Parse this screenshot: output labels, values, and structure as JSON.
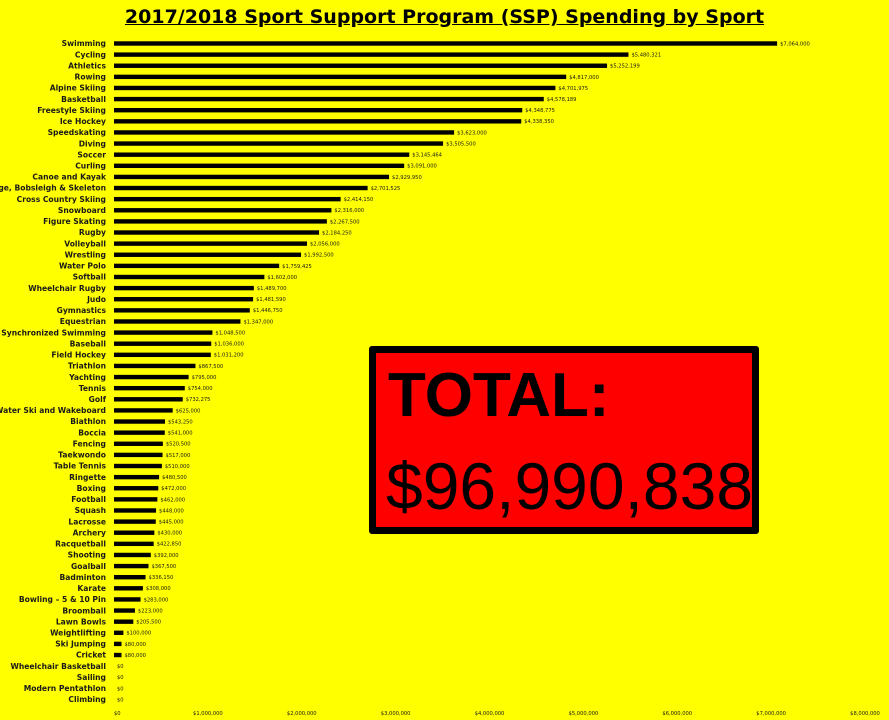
{
  "chart_data": {
    "type": "bar",
    "orientation": "horizontal",
    "title": "2017/2018 Sport Support Program (SSP) Spending by Sport",
    "xlim": [
      0,
      8000000
    ],
    "xticks": [
      0,
      1000000,
      2000000,
      3000000,
      4000000,
      5000000,
      6000000,
      7000000,
      8000000
    ],
    "xtick_labels": [
      "$0",
      "$1,000,000",
      "$2,000,000",
      "$3,000,000",
      "$4,000,000",
      "$5,000,000",
      "$6,000,000",
      "$7,000,000",
      "$8,000,000"
    ],
    "bar_color": "#000000",
    "background_color": "#ffff00",
    "grid": false,
    "categories": [
      "Swimming",
      "Cycling",
      "Athletics",
      "Rowing",
      "Alpine Skiing",
      "Basketball",
      "Freestyle Skiing",
      "Ice Hockey",
      "Speedskating",
      "Diving",
      "Soccer",
      "Curling",
      "Canoe and Kayak",
      "Luge, Bobsleigh & Skeleton",
      "Cross Country Skiing",
      "Snowboard",
      "Figure Skating",
      "Rugby",
      "Volleyball",
      "Wrestling",
      "Water Polo",
      "Softball",
      "Wheelchair Rugby",
      "Judo",
      "Gymnastics",
      "Equestrian",
      "Synchronized Swimming",
      "Baseball",
      "Field Hockey",
      "Triathlon",
      "Yachting",
      "Tennis",
      "Golf",
      "Water Ski and Wakeboard",
      "Biathlon",
      "Boccia",
      "Fencing",
      "Taekwondo",
      "Table Tennis",
      "Ringette",
      "Boxing",
      "Football",
      "Squash",
      "Lacrosse",
      "Archery",
      "Racquetball",
      "Shooting",
      "Goalball",
      "Badminton",
      "Karate",
      "Bowling – 5 & 10 Pin",
      "Broomball",
      "Lawn Bowls",
      "Weightlifting",
      "Ski Jumping",
      "Cricket",
      "Wheelchair Basketball",
      "Sailing",
      "Modern Pentathlon",
      "Climbing"
    ],
    "values": [
      7064000,
      5480321,
      5252199,
      4817000,
      4701975,
      4578189,
      4348775,
      4338350,
      3623000,
      3505500,
      3145464,
      3091000,
      2929950,
      2701525,
      2414150,
      2316000,
      2267500,
      2184250,
      2056000,
      1992500,
      1759425,
      1602000,
      1489700,
      1481590,
      1446750,
      1347000,
      1048500,
      1036000,
      1031200,
      867500,
      795000,
      754000,
      732275,
      625000,
      543250,
      541000,
      520500,
      517000,
      510000,
      480500,
      472000,
      462000,
      448000,
      445000,
      430000,
      422850,
      392000,
      367500,
      336150,
      308000,
      283000,
      223000,
      205500,
      100000,
      80000,
      80000,
      0,
      0,
      0,
      0
    ],
    "value_labels": [
      "$7,064,000",
      "$5,480,321",
      "$5,252,199",
      "$4,817,000",
      "$4,701,975",
      "$4,578,189",
      "$4,348,775",
      "$4,338,350",
      "$3,623,000",
      "$3,505,500",
      "$3,145,464",
      "$3,091,000",
      "$2,929,950",
      "$2,701,525",
      "$2,414,150",
      "$2,316,000",
      "$2,267,500",
      "$2,184,250",
      "$2,056,000",
      "$1,992,500",
      "$1,759,425",
      "$1,602,000",
      "$1,489,700",
      "$1,481,590",
      "$1,446,750",
      "$1,347,000",
      "$1,048,500",
      "$1,036,000",
      "$1,031,200",
      "$867,500",
      "$795,000",
      "$754,000",
      "$732,275",
      "$625,000",
      "$543,250",
      "$541,000",
      "$520,500",
      "$517,000",
      "$510,000",
      "$480,500",
      "$472,000",
      "$462,000",
      "$448,000",
      "$445,000",
      "$430,000",
      "$422,850",
      "$392,000",
      "$367,500",
      "$336,150",
      "$308,000",
      "$283,000",
      "$223,000",
      "$205,500",
      "$100,000",
      "$80,000",
      "$80,000",
      "$0",
      "$0",
      "$0",
      "$0"
    ]
  },
  "total_box": {
    "label": "TOTAL:",
    "value": "$96,990,838",
    "fill_color": "#ff0000",
    "border_color": "#000000"
  }
}
